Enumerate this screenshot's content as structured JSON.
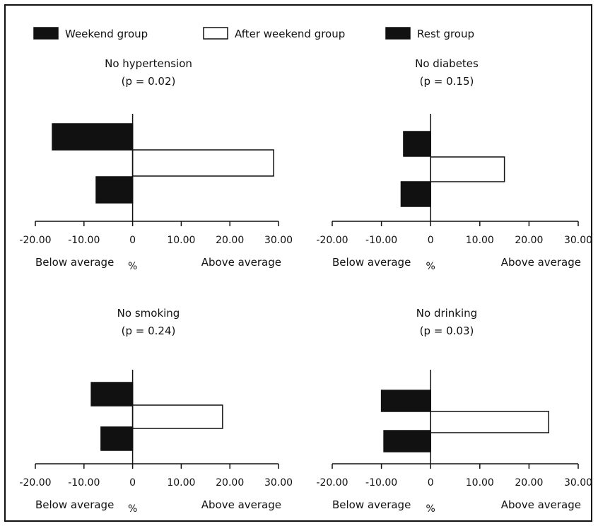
{
  "legend": [
    {
      "label": "Weekend group",
      "fill": "#111111"
    },
    {
      "label": "After weekend group",
      "fill": "#ffffff"
    },
    {
      "label": "Rest group",
      "fill": "#111111"
    }
  ],
  "chart_data": [
    {
      "type": "bar",
      "orientation": "horizontal",
      "title": "No hypertension",
      "subtitle": "(p = 0.02)",
      "series": [
        {
          "name": "Weekend group",
          "value": -16.5
        },
        {
          "name": "After weekend group",
          "value": 29.0
        },
        {
          "name": "Rest group",
          "value": -7.5
        }
      ],
      "xlim": [
        -20,
        30
      ],
      "ticks": [
        "-20.00",
        "-10.00",
        "0",
        "10.00",
        "20.00",
        "30.00"
      ],
      "xlabel_left": "Below average",
      "xlabel_center": "%",
      "xlabel_right": "Above average"
    },
    {
      "type": "bar",
      "orientation": "horizontal",
      "title": "No diabetes",
      "subtitle": "(p = 0.15)",
      "series": [
        {
          "name": "Weekend group",
          "value": -5.5
        },
        {
          "name": "After weekend group",
          "value": 15.0
        },
        {
          "name": "Rest group",
          "value": -6.0
        }
      ],
      "xlim": [
        -20,
        30
      ],
      "ticks": [
        "-20.00",
        "-10.00",
        "0",
        "10.00",
        "20.00",
        "30.00"
      ],
      "xlabel_left": "Below average",
      "xlabel_center": "%",
      "xlabel_right": "Above average"
    },
    {
      "type": "bar",
      "orientation": "horizontal",
      "title": "No smoking",
      "subtitle": "(p = 0.24)",
      "series": [
        {
          "name": "Weekend group",
          "value": -8.5
        },
        {
          "name": "After weekend group",
          "value": 18.5
        },
        {
          "name": "Rest group",
          "value": -6.5
        }
      ],
      "xlim": [
        -20,
        30
      ],
      "ticks": [
        "-20.00",
        "-10.00",
        "0",
        "10.00",
        "20.00",
        "30.00"
      ],
      "xlabel_left": "Below average",
      "xlabel_center": "%",
      "xlabel_right": "Above average"
    },
    {
      "type": "bar",
      "orientation": "horizontal",
      "title": "No drinking",
      "subtitle": "(p = 0.03)",
      "series": [
        {
          "name": "Weekend group",
          "value": -10.0
        },
        {
          "name": "After weekend group",
          "value": 24.0
        },
        {
          "name": "Rest group",
          "value": -9.5
        }
      ],
      "xlim": [
        -20,
        30
      ],
      "ticks": [
        "-20.00",
        "-10.00",
        "0",
        "10.00",
        "20.00",
        "30.00"
      ],
      "xlabel_left": "Below average",
      "xlabel_center": "%",
      "xlabel_right": "Above average"
    }
  ]
}
